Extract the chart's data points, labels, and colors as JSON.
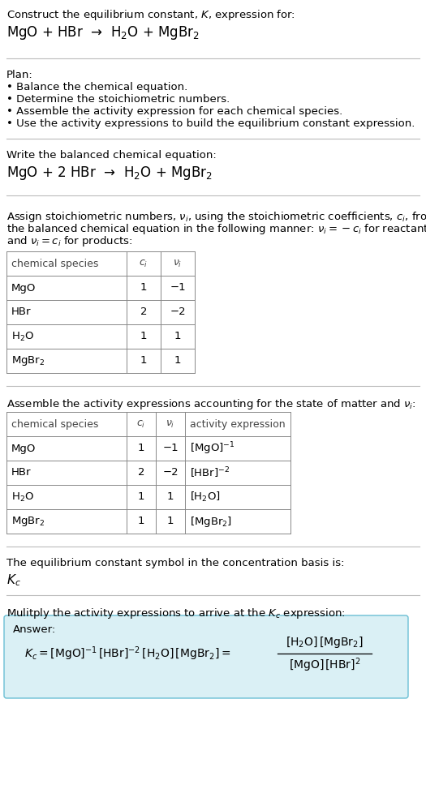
{
  "bg_color": "#ffffff",
  "text_color": "#000000",
  "light_blue_box": "#daf0f5",
  "separator_color": "#bbbbbb",
  "title_text": "Construct the equilibrium constant, $K$, expression for:",
  "unbalanced_eq": "MgO + HBr  →  H$_2$O + MgBr$_2$",
  "plan_header": "Plan:",
  "plan_bullets": [
    "• Balance the chemical equation.",
    "• Determine the stoichiometric numbers.",
    "• Assemble the activity expression for each chemical species.",
    "• Use the activity expressions to build the equilibrium constant expression."
  ],
  "balanced_label": "Write the balanced chemical equation:",
  "balanced_eq": "MgO + 2 HBr  →  H$_2$O + MgBr$_2$",
  "stoich_label_lines": [
    "Assign stoichiometric numbers, $\\nu_i$, using the stoichiometric coefficients, $c_i$, from",
    "the balanced chemical equation in the following manner: $\\nu_i = -c_i$ for reactants",
    "and $\\nu_i = c_i$ for products:"
  ],
  "table1_headers": [
    "chemical species",
    "$c_i$",
    "$\\nu_i$"
  ],
  "table1_rows": [
    [
      "MgO",
      "1",
      "−1"
    ],
    [
      "HBr",
      "2",
      "−2"
    ],
    [
      "H$_2$O",
      "1",
      "1"
    ],
    [
      "MgBr$_2$",
      "1",
      "1"
    ]
  ],
  "activity_label": "Assemble the activity expressions accounting for the state of matter and $\\nu_i$:",
  "table2_headers": [
    "chemical species",
    "$c_i$",
    "$\\nu_i$",
    "activity expression"
  ],
  "table2_rows": [
    [
      "MgO",
      "1",
      "−1",
      "[MgO]$^{-1}$"
    ],
    [
      "HBr",
      "2",
      "−2",
      "[HBr]$^{-2}$"
    ],
    [
      "H$_2$O",
      "1",
      "1",
      "[H$_2$O]"
    ],
    [
      "MgBr$_2$",
      "1",
      "1",
      "[MgBr$_2$]"
    ]
  ],
  "kc_label": "The equilibrium constant symbol in the concentration basis is:",
  "kc_symbol": "$K_c$",
  "multiply_label": "Mulitply the activity expressions to arrive at the $K_c$ expression:",
  "answer_label": "Answer:",
  "font_size": 9.5
}
